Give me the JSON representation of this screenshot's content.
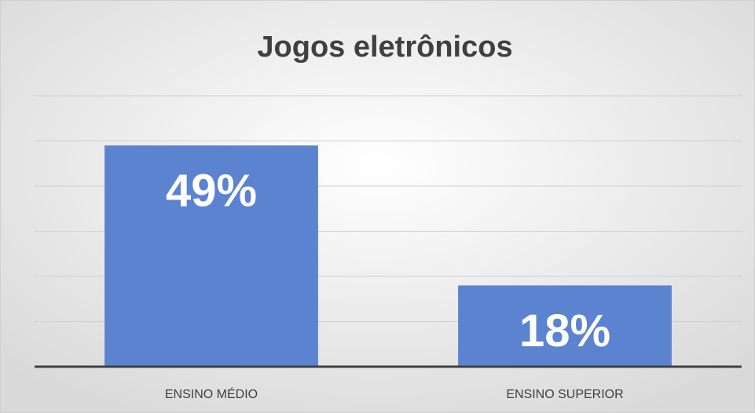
{
  "chart_data": {
    "type": "bar",
    "title": "Jogos eletrônicos",
    "categories": [
      "ENSINO MÉDIO",
      "ENSINO SUPERIOR"
    ],
    "values": [
      49,
      18
    ],
    "value_labels": [
      "49%",
      "18%"
    ],
    "color": "#5b83d0",
    "ylim": [
      0,
      60
    ],
    "yticks": [
      0,
      10,
      20,
      30,
      40,
      50,
      60
    ],
    "grid": true
  }
}
